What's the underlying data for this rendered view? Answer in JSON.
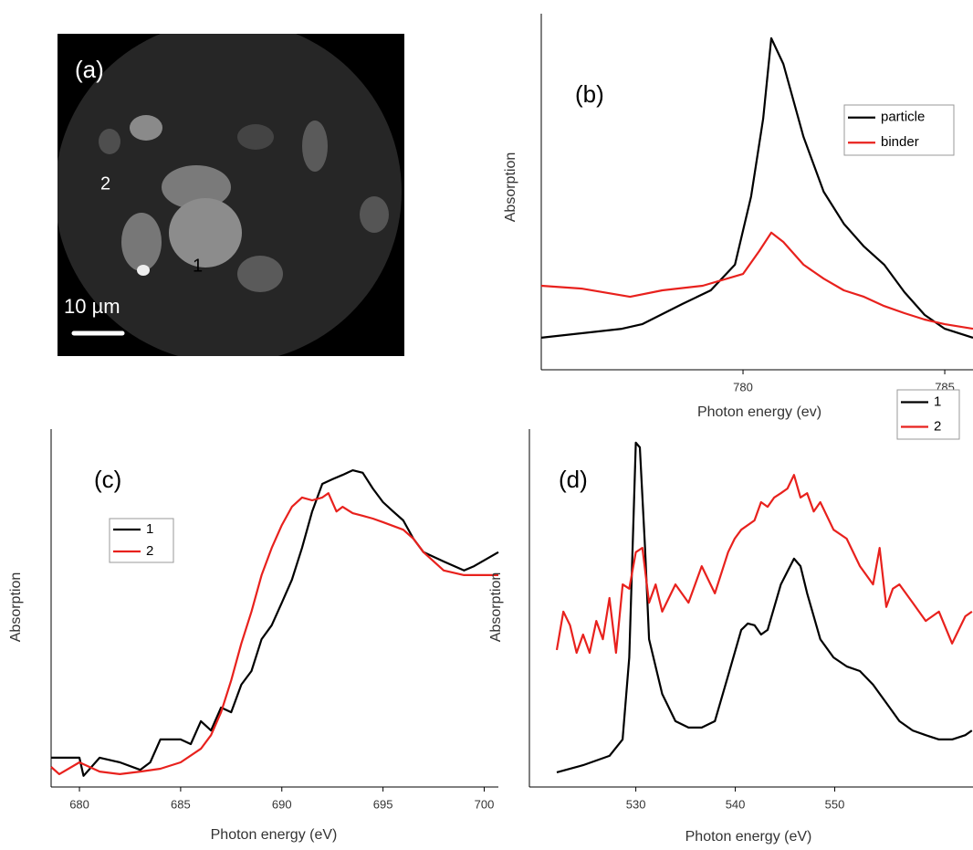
{
  "chart_data": [
    {
      "type": "image",
      "title": "(a)",
      "annotations": [
        "2",
        "1",
        "10 µm"
      ]
    },
    {
      "type": "line",
      "title": "(b)",
      "xlabel": "Photon energy (ev)",
      "ylabel": "Absorption",
      "xlim": [
        775,
        785.7
      ],
      "ylim": [
        0,
        1
      ],
      "xticks": [
        780,
        785
      ],
      "series": [
        {
          "name": "particle",
          "color": "#000000",
          "x": [
            775,
            777,
            777.5,
            778.5,
            779.2,
            779.8,
            780.2,
            780.5,
            780.7,
            781,
            781.5,
            782,
            782.5,
            783,
            783.5,
            784,
            784.5,
            785,
            785.7
          ],
          "values": [
            0.09,
            0.115,
            0.128,
            0.185,
            0.223,
            0.295,
            0.487,
            0.705,
            0.931,
            0.859,
            0.654,
            0.5,
            0.41,
            0.346,
            0.295,
            0.218,
            0.154,
            0.115,
            0.09
          ]
        },
        {
          "name": "binder",
          "color": "#e8211d",
          "x": [
            775,
            776,
            777.2,
            778,
            779,
            780,
            780.4,
            780.7,
            781,
            781.5,
            782,
            782.5,
            783,
            783.5,
            784,
            784.5,
            785,
            785.7
          ],
          "values": [
            0.236,
            0.228,
            0.205,
            0.223,
            0.236,
            0.269,
            0.333,
            0.385,
            0.359,
            0.295,
            0.256,
            0.223,
            0.205,
            0.179,
            0.159,
            0.141,
            0.128,
            0.115
          ]
        }
      ]
    },
    {
      "type": "line",
      "title": "(c)",
      "xlabel": "Photon energy (eV)",
      "ylabel": "Absorption",
      "xlim": [
        678.6,
        700.7
      ],
      "ylim": [
        0,
        1
      ],
      "xticks": [
        680,
        685,
        690,
        695,
        700
      ],
      "series": [
        {
          "name": "1",
          "color": "#000000",
          "x": [
            678.6,
            680,
            680.2,
            681,
            682,
            683,
            683.5,
            684,
            685,
            685.5,
            686,
            686.5,
            687,
            687.5,
            688,
            688.5,
            689,
            689.5,
            690,
            690.5,
            691,
            691.5,
            692,
            692.5,
            693,
            693.5,
            694,
            694.5,
            695,
            695.5,
            696,
            696.5,
            697,
            698,
            699,
            699.5,
            700.7
          ],
          "values": [
            0.082,
            0.082,
            0.031,
            0.082,
            0.069,
            0.048,
            0.069,
            0.133,
            0.133,
            0.12,
            0.184,
            0.158,
            0.222,
            0.209,
            0.286,
            0.324,
            0.413,
            0.452,
            0.515,
            0.579,
            0.668,
            0.77,
            0.847,
            0.86,
            0.872,
            0.885,
            0.878,
            0.834,
            0.796,
            0.77,
            0.745,
            0.694,
            0.656,
            0.63,
            0.605,
            0.617,
            0.656
          ]
        },
        {
          "name": "2",
          "color": "#e8211d",
          "x": [
            678.6,
            679,
            680,
            681,
            682,
            683,
            684,
            685,
            686,
            686.5,
            687,
            687.5,
            688,
            688.5,
            689,
            689.5,
            690,
            690.5,
            691,
            691.5,
            692,
            692.3,
            692.7,
            693,
            693.5,
            694,
            694.5,
            695,
            696,
            696.5,
            697,
            698,
            699,
            700.7
          ],
          "values": [
            0.056,
            0.036,
            0.069,
            0.043,
            0.036,
            0.043,
            0.051,
            0.069,
            0.107,
            0.145,
            0.209,
            0.298,
            0.401,
            0.49,
            0.592,
            0.668,
            0.732,
            0.783,
            0.809,
            0.801,
            0.809,
            0.821,
            0.77,
            0.783,
            0.765,
            0.758,
            0.75,
            0.74,
            0.719,
            0.694,
            0.656,
            0.605,
            0.592,
            0.592
          ]
        }
      ]
    },
    {
      "type": "line",
      "title": "(d)",
      "xlabel": "Photon energy (eV)",
      "ylabel": "Absorption",
      "xlim": [
        519.3,
        563.9
      ],
      "ylim": [
        0,
        1
      ],
      "xticks": [
        530,
        540,
        550
      ],
      "series": [
        {
          "name": "1",
          "color": "#000000",
          "x": [
            522.05,
            524.7,
            527.35,
            528.67,
            529.34,
            530,
            530.4,
            530.93,
            531.33,
            532.65,
            533.98,
            535.3,
            536.63,
            537.95,
            539.28,
            540.6,
            541.26,
            541.93,
            542.59,
            543.25,
            544.58,
            545.9,
            546.56,
            547.23,
            548.55,
            549.88,
            551.2,
            552.53,
            553.85,
            555.18,
            556.5,
            557.83,
            559.15,
            560.48,
            561.8,
            563.13,
            563.79
          ],
          "values": [
            0.041,
            0.061,
            0.087,
            0.133,
            0.362,
            0.962,
            0.949,
            0.668,
            0.413,
            0.26,
            0.184,
            0.166,
            0.166,
            0.184,
            0.311,
            0.439,
            0.457,
            0.452,
            0.426,
            0.439,
            0.566,
            0.638,
            0.617,
            0.541,
            0.413,
            0.362,
            0.337,
            0.324,
            0.286,
            0.235,
            0.184,
            0.158,
            0.145,
            0.133,
            0.133,
            0.145,
            0.158
          ]
        },
        {
          "name": "2",
          "color": "#e8211d",
          "x": [
            522.05,
            522.71,
            523.38,
            524.04,
            524.7,
            525.36,
            526.03,
            526.69,
            527.35,
            528.01,
            528.68,
            529.34,
            530,
            530.66,
            531.33,
            531.99,
            532.65,
            533.98,
            535.3,
            536.63,
            537.95,
            539.28,
            539.94,
            540.6,
            541.93,
            542.59,
            543.25,
            543.91,
            544.58,
            545.24,
            545.9,
            546.56,
            547.23,
            547.89,
            548.55,
            549.88,
            551.2,
            552.53,
            553.85,
            554.51,
            555.18,
            555.84,
            556.5,
            557.83,
            559.15,
            560.48,
            561.8,
            563.13,
            563.8
          ],
          "values": [
            0.383,
            0.49,
            0.452,
            0.375,
            0.426,
            0.375,
            0.464,
            0.413,
            0.528,
            0.375,
            0.566,
            0.554,
            0.656,
            0.668,
            0.515,
            0.566,
            0.49,
            0.566,
            0.515,
            0.617,
            0.541,
            0.656,
            0.694,
            0.719,
            0.745,
            0.796,
            0.783,
            0.809,
            0.821,
            0.834,
            0.872,
            0.809,
            0.821,
            0.77,
            0.796,
            0.719,
            0.694,
            0.617,
            0.566,
            0.668,
            0.503,
            0.554,
            0.566,
            0.515,
            0.464,
            0.49,
            0.401,
            0.477,
            0.49
          ]
        }
      ]
    }
  ]
}
